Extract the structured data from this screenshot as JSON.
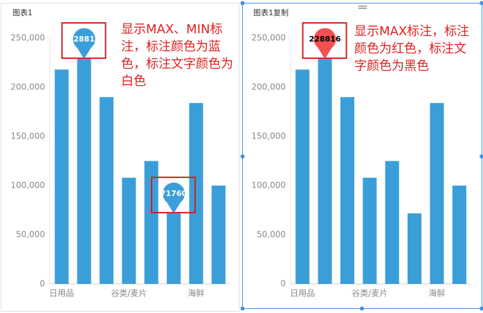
{
  "chart_data": [
    {
      "type": "bar",
      "title": "图表1",
      "annotation": "显示MAX、MIN标注，标注颜色为蓝色，标注文字颜色为白色",
      "categories": [
        "日用品",
        null,
        null,
        "谷类/麦片",
        null,
        null,
        "海鲜",
        null
      ],
      "values": [
        218000,
        228816,
        190000,
        108000,
        125000,
        71760,
        184000,
        100000
      ],
      "color": "#3a9fd9",
      "ylim": [
        0,
        250000
      ],
      "yticks": [
        0,
        {
          "value": 50000,
          "label": "50,000"
        },
        {
          "value": 100000,
          "label": "100,000"
        },
        {
          "value": 150000,
          "label": "150,000"
        },
        {
          "value": 200000,
          "label": "200,000"
        },
        {
          "value": 250000,
          "label": "250,000"
        }
      ],
      "grid": false,
      "markers": {
        "max": true,
        "min": true,
        "color": "#3a9fd9",
        "text_color": "#ffffff"
      }
    },
    {
      "type": "bar",
      "title": "图表1复制",
      "annotation": "显示MAX标注，标注颜色为红色，标注文字颜色为黑色",
      "categories": [
        "日用品",
        null,
        null,
        "谷类/麦片",
        null,
        null,
        "海鲜",
        null
      ],
      "values": [
        218000,
        228816,
        190000,
        108000,
        125000,
        71760,
        184000,
        100000
      ],
      "color": "#3a9fd9",
      "ylim": [
        0,
        250000
      ],
      "yticks": [
        0,
        {
          "value": 50000,
          "label": "50,000"
        },
        {
          "value": 100000,
          "label": "100,000"
        },
        {
          "value": 150000,
          "label": "150,000"
        },
        {
          "value": 200000,
          "label": "200,000"
        },
        {
          "value": 250000,
          "label": "250,000"
        }
      ],
      "grid": false,
      "markers": {
        "max": true,
        "min": false,
        "color": "#f05050",
        "text_color": "#000000"
      }
    }
  ]
}
